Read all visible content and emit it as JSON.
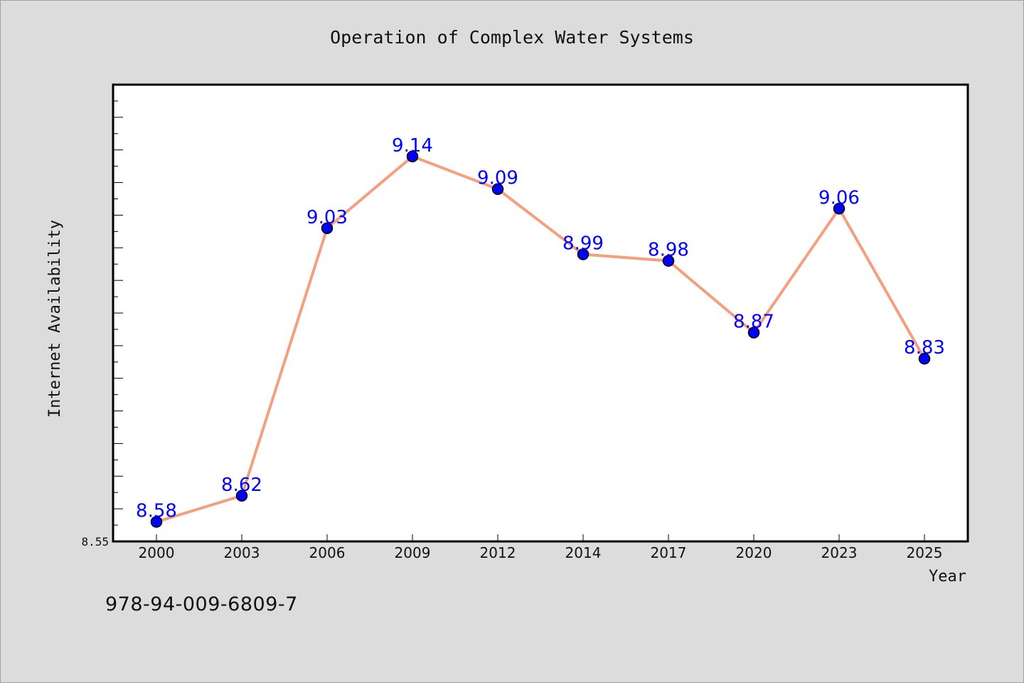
{
  "chart_data": {
    "type": "line",
    "title": "Operation of Complex Water Systems",
    "xlabel": "Year",
    "ylabel": "Internet Availability",
    "categories": [
      "2000",
      "2003",
      "2006",
      "2009",
      "2012",
      "2014",
      "2017",
      "2020",
      "2023",
      "2025"
    ],
    "values": [
      8.58,
      8.62,
      9.03,
      9.14,
      9.09,
      8.99,
      8.98,
      8.87,
      9.06,
      8.83
    ],
    "data_labels": [
      "8.58",
      "8.62",
      "9.03",
      "9.14",
      "9.09",
      "8.99",
      "8.98",
      "8.87",
      "9.06",
      "8.83"
    ],
    "ylim": [
      8.55,
      9.25
    ],
    "y_tick_labels": [
      "8.55"
    ],
    "grid": false,
    "legend": "none",
    "colors": {
      "line": "#f4a07e",
      "marker": "#0000ff",
      "marker_edge": "#000000",
      "data_label": "#0000ff",
      "plot_bg": "#ffffff",
      "figure_bg": "#dcdcdc"
    }
  },
  "footer": {
    "isbn": "978-94-009-6809-7"
  }
}
